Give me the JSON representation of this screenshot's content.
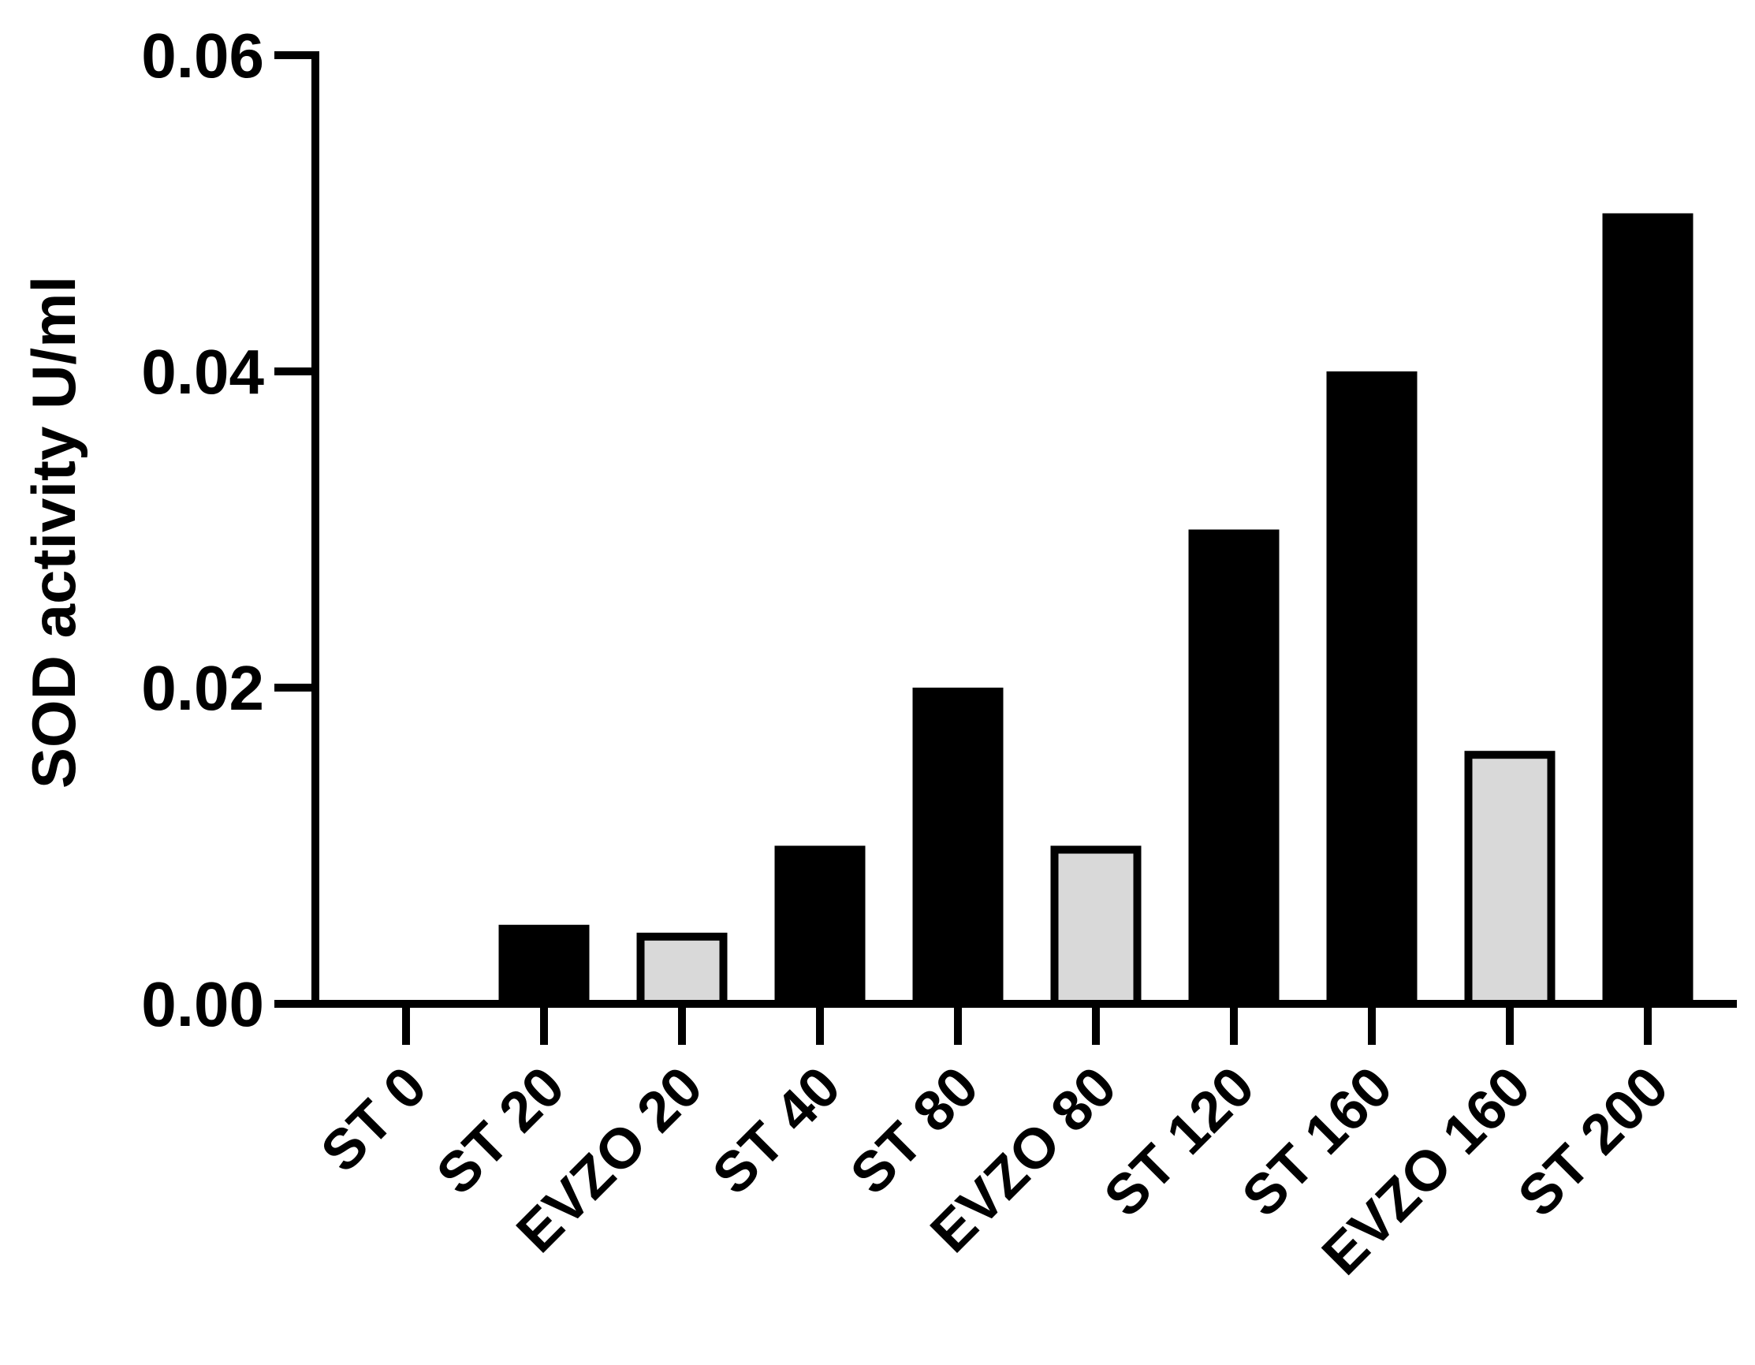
{
  "chart_data": {
    "type": "bar",
    "title": "",
    "xlabel": "",
    "ylabel": "SOD activity U/ml",
    "ylim": [
      0,
      0.06
    ],
    "yticks": [
      "0.00",
      "0.02",
      "0.04",
      "0.06"
    ],
    "grid": false,
    "legend": "none",
    "categories": [
      "ST 0",
      "ST 20",
      "EVZO 20",
      "ST 40",
      "ST 80",
      "EVZO 80",
      "ST 120",
      "ST 160",
      "EVZO 160",
      "ST 200"
    ],
    "values": [
      0,
      0.005,
      0.0045,
      0.01,
      0.02,
      0.01,
      0.03,
      0.04,
      0.016,
      0.05
    ],
    "bar_colors": [
      "#000000",
      "#000000",
      "#d9d9d9",
      "#000000",
      "#000000",
      "#d9d9d9",
      "#000000",
      "#000000",
      "#d9d9d9",
      "#000000"
    ],
    "edge_color": "#000000"
  }
}
